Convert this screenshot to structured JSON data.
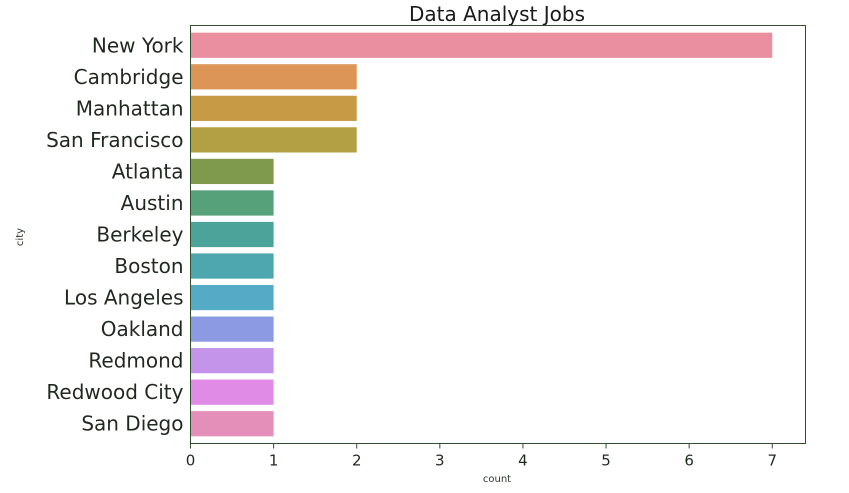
{
  "chart_data": {
    "type": "bar",
    "orientation": "horizontal",
    "title": "Data Analyst Jobs",
    "xlabel": "count",
    "ylabel": "city",
    "categories": [
      "New York",
      "Cambridge",
      "Manhattan",
      "San Francisco",
      "Atlanta",
      "Austin",
      "Berkeley",
      "Boston",
      "Los Angeles",
      "Oakland",
      "Redmond",
      "Redwood City",
      "San Diego"
    ],
    "values": [
      7,
      2,
      2,
      2,
      1,
      1,
      1,
      1,
      1,
      1,
      1,
      1,
      1
    ],
    "colors": [
      "#ea8fa0",
      "#dc9457",
      "#c79a46",
      "#b3a044",
      "#7f9a4c",
      "#56a07a",
      "#4ca39a",
      "#4ea7ae",
      "#55abc6",
      "#8c9ae4",
      "#c394ea",
      "#e08be6",
      "#e48fb9"
    ],
    "xlim": [
      0,
      7.4
    ],
    "xticks": [
      "0",
      "1",
      "2",
      "3",
      "4",
      "5",
      "6",
      "7"
    ],
    "grid": false,
    "legend": "none"
  }
}
